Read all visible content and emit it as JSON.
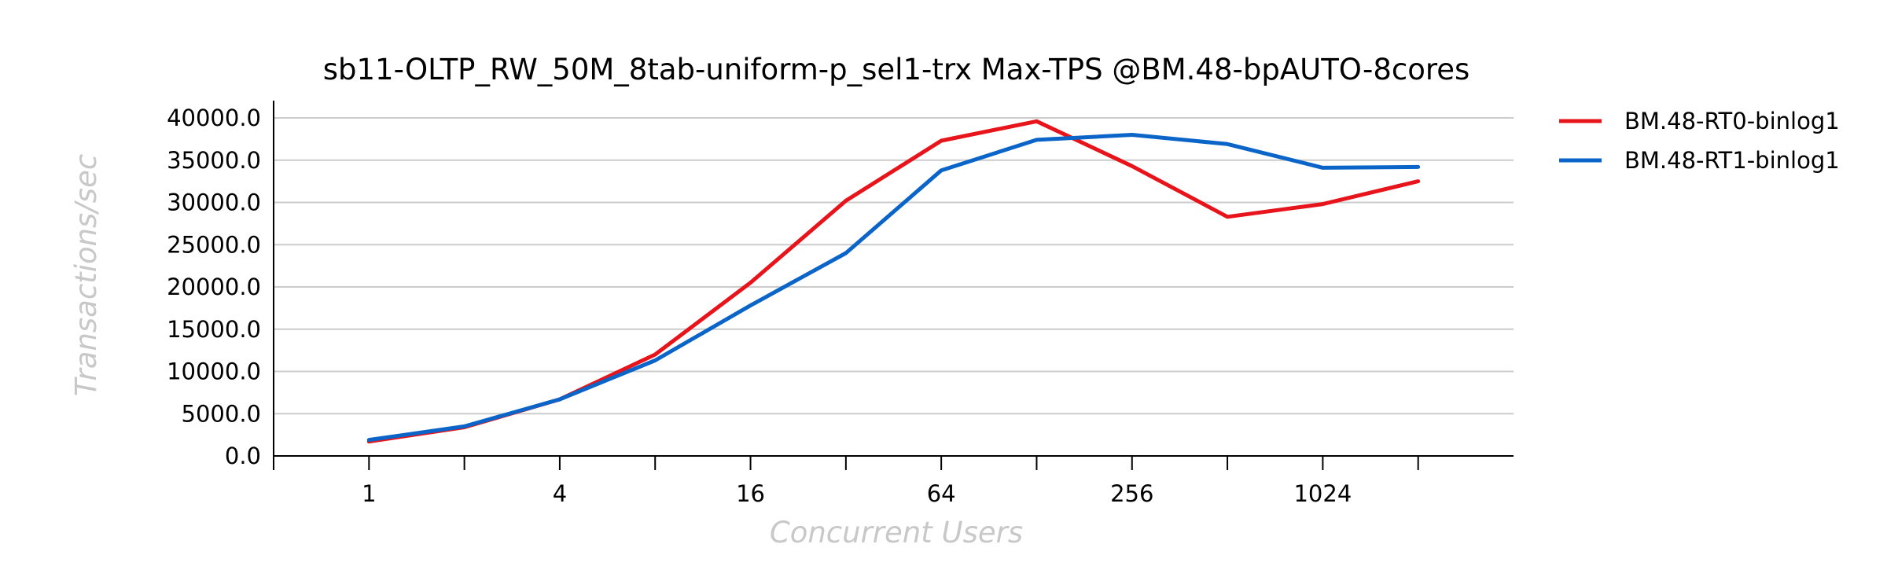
{
  "chart_data": {
    "type": "line",
    "title": "sb11-OLTP_RW_50M_8tab-uniform-p_sel1-trx Max-TPS @BM.48-bpAUTO-8cores",
    "xlabel": "Concurrent Users",
    "ylabel": "Transactions/sec",
    "x_scale": "log2",
    "x": [
      1,
      2,
      4,
      8,
      16,
      32,
      64,
      128,
      256,
      512,
      1024,
      2048
    ],
    "x_tick_labels": [
      {
        "value": 1,
        "label": "1"
      },
      {
        "value": 4,
        "label": "4"
      },
      {
        "value": 16,
        "label": "16"
      },
      {
        "value": 64,
        "label": "64"
      },
      {
        "value": 256,
        "label": "256"
      },
      {
        "value": 1024,
        "label": "1024"
      }
    ],
    "xlim": [
      0.5,
      4096
    ],
    "ylim": [
      0,
      40000
    ],
    "y_ticks": [
      "0.0",
      "5000.0",
      "10000.0",
      "15000.0",
      "20000.0",
      "25000.0",
      "30000.0",
      "35000.0",
      "40000.0"
    ],
    "grid": true,
    "legend_position": "top-right",
    "series": [
      {
        "name": "BM.48-RT0-binlog1",
        "color": "#e8141b",
        "values": [
          1700,
          3400,
          6700,
          12000,
          20500,
          30200,
          37300,
          39600,
          34300,
          28300,
          29800,
          32500
        ]
      },
      {
        "name": "BM.48-RT1-binlog1",
        "color": "#0b64c8",
        "values": [
          1900,
          3500,
          6700,
          11300,
          17800,
          24000,
          33800,
          37400,
          38000,
          36900,
          34100,
          34200
        ]
      }
    ]
  }
}
